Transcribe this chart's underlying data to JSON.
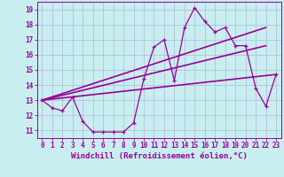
{
  "bg_color": "#c8eef0",
  "grid_color": "#b0b8d8",
  "line_color": "#990099",
  "xlim": [
    -0.5,
    23.5
  ],
  "ylim": [
    10.5,
    19.5
  ],
  "xlabel": "Windchill (Refroidissement éolien,°C)",
  "xticks": [
    0,
    1,
    2,
    3,
    4,
    5,
    6,
    7,
    8,
    9,
    10,
    11,
    12,
    13,
    14,
    15,
    16,
    17,
    18,
    19,
    20,
    21,
    22,
    23
  ],
  "yticks": [
    11,
    12,
    13,
    14,
    15,
    16,
    17,
    18,
    19
  ],
  "series1_x": [
    0,
    1,
    2,
    3,
    4,
    5,
    6,
    7,
    8,
    9,
    10,
    11,
    12,
    13,
    14,
    15,
    16,
    17,
    18,
    19,
    20,
    21,
    22,
    23
  ],
  "series1_y": [
    13.0,
    12.5,
    12.3,
    13.2,
    11.6,
    10.9,
    10.9,
    10.9,
    10.9,
    11.5,
    14.4,
    16.5,
    17.0,
    14.3,
    17.8,
    19.1,
    18.2,
    17.5,
    17.8,
    16.6,
    16.6,
    13.8,
    12.6,
    14.7
  ],
  "series2_x": [
    0,
    22
  ],
  "series2_y": [
    13.0,
    17.8
  ],
  "series3_x": [
    0,
    22
  ],
  "series3_y": [
    13.0,
    16.6
  ],
  "series4_x": [
    0,
    23
  ],
  "series4_y": [
    13.0,
    14.7
  ],
  "tick_fontsize": 5.5,
  "xlabel_fontsize": 6.5
}
